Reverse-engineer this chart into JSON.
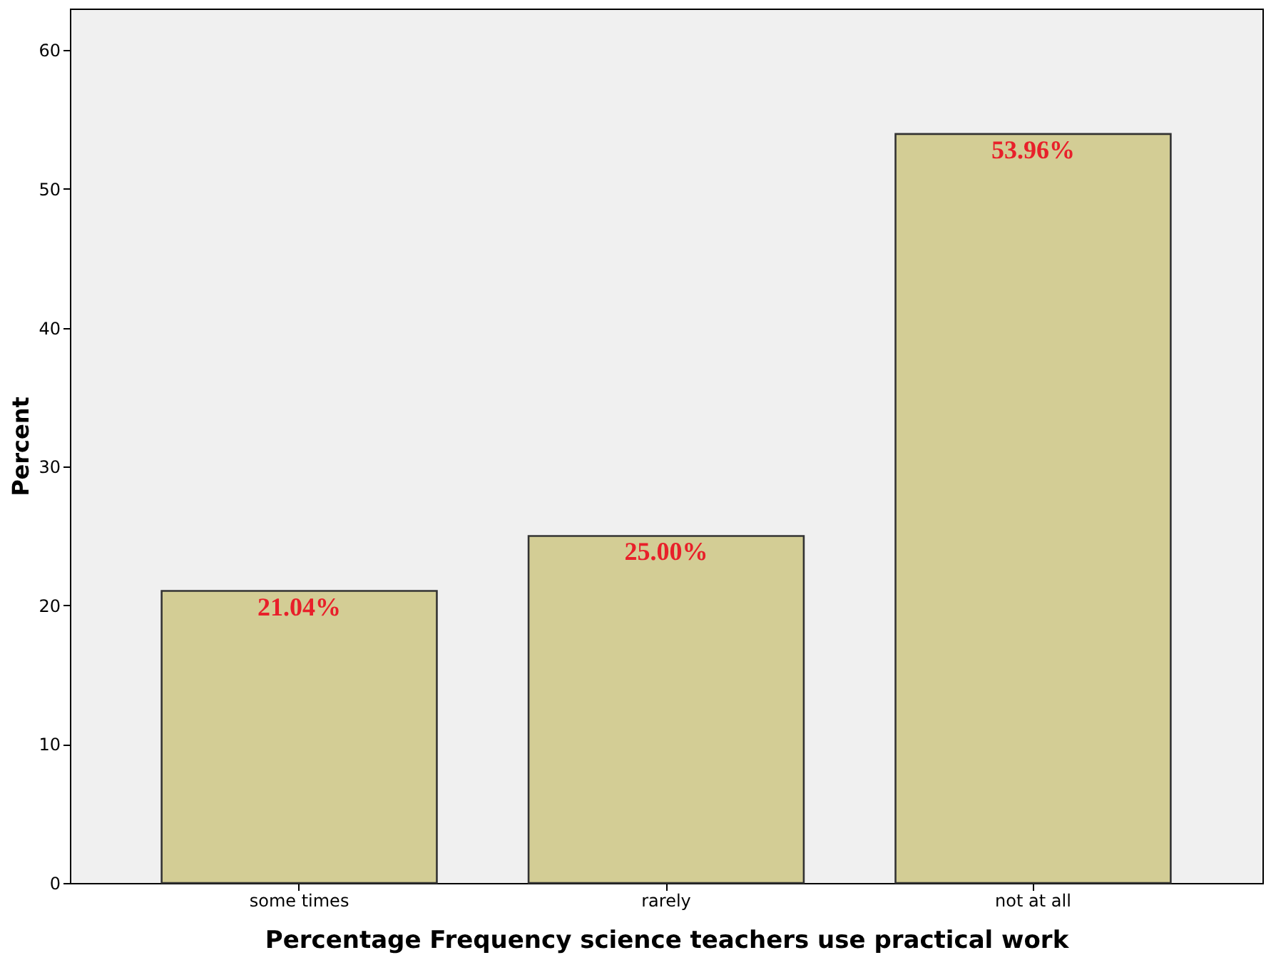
{
  "chart_data": {
    "type": "bar",
    "xlabel": "Percentage Frequency science teachers use practical work",
    "ylabel": "Percent",
    "categories": [
      "some times",
      "rarely",
      "not at all"
    ],
    "values": [
      21.04,
      25.0,
      53.96
    ],
    "value_labels": [
      "21.04%",
      "25.00%",
      "53.96%"
    ],
    "color": "#d3cd95",
    "ylim": [
      0,
      63
    ],
    "yticks": [
      0,
      10,
      20,
      30,
      40,
      50,
      60
    ],
    "grid": false
  }
}
